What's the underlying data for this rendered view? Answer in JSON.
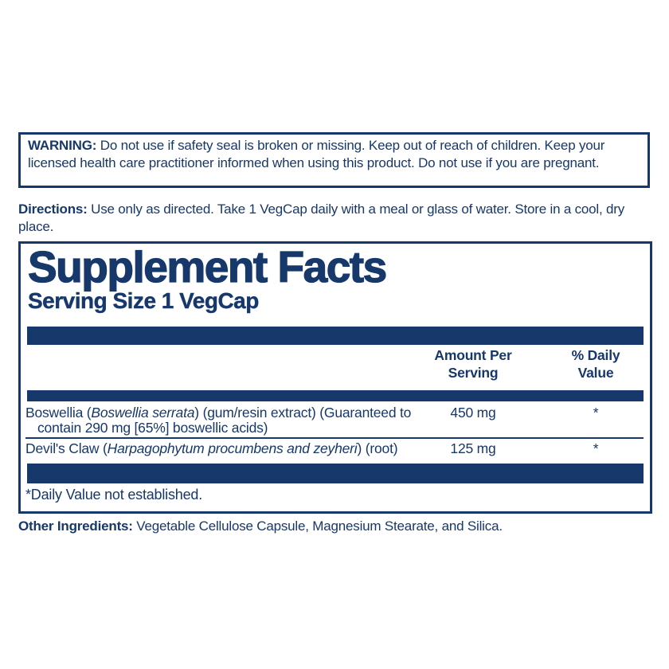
{
  "colors": {
    "navy": "#17386b",
    "background": "#ffffff"
  },
  "warning": {
    "label": "WARNING:",
    "text": "Do not use if safety seal is broken or missing. Keep out of reach of children. Keep your licensed health care practitioner informed when using this product. Do not use if you are pregnant."
  },
  "directions": {
    "label": "Directions:",
    "text": "Use only as directed. Take 1 VegCap daily with a meal or glass of water. Store in a cool, dry place."
  },
  "supplement_facts": {
    "title": "Supplement Facts",
    "serving_size": "Serving Size 1 VegCap",
    "columns": {
      "amount_per_serving": "Amount Per Serving",
      "percent_daily_value": "% Daily Value"
    },
    "rows": [
      {
        "name_segments": [
          {
            "text": "Boswellia (",
            "italic": false
          },
          {
            "text": "Boswellia serrata",
            "italic": true
          },
          {
            "text": ") (gum/resin extract) (Guaranteed to contain 290 mg [65%] boswellic acids)",
            "italic": false
          }
        ],
        "amount": "450 mg",
        "daily_value": "*"
      },
      {
        "name_segments": [
          {
            "text": "Devil's Claw (",
            "italic": false
          },
          {
            "text": "Harpagophytum procumbens and zeyheri",
            "italic": true
          },
          {
            "text": ") (root)",
            "italic": false
          }
        ],
        "amount": "125 mg",
        "daily_value": "*"
      }
    ],
    "footnote": "*Daily Value not established."
  },
  "other_ingredients": {
    "label": "Other Ingredients:",
    "text": "Vegetable Cellulose Capsule, Magnesium Stearate, and Silica."
  }
}
